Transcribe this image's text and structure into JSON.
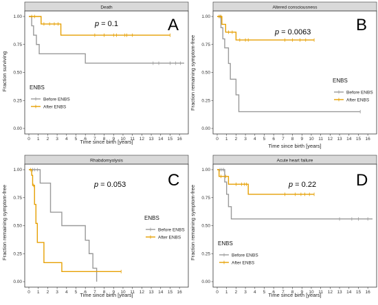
{
  "figure": {
    "colors": {
      "before": "#999999",
      "after": "#E69F00",
      "frame": "#333333",
      "strip_fill": "#d9d9d9"
    },
    "legend_title": "ENBS",
    "legend_labels": [
      "Before ENBS",
      "After ENBS"
    ]
  },
  "chart_data": [
    {
      "type": "line",
      "letter": "A",
      "title": "Death",
      "p_prefix": "p",
      "p_value": " = 0.1",
      "xlabel": "Time since birth [years]",
      "ylabel": "Fraction surviving",
      "xlim": [
        0,
        16.5
      ],
      "ylim": [
        0,
        1
      ],
      "x_ticks": [
        0,
        1,
        2,
        3,
        4,
        5,
        6,
        7,
        8,
        9,
        10,
        11,
        12,
        13,
        14,
        15,
        16
      ],
      "y_ticks": [
        0,
        0.25,
        0.5,
        0.75,
        1
      ],
      "y_tick_labels": [
        "0.00",
        "0.25",
        "0.50",
        "0.75",
        "1.00"
      ],
      "legend_position": "left",
      "series": [
        {
          "name": "Before ENBS",
          "color_key": "before",
          "steps": [
            [
              0,
              1
            ],
            [
              0.3,
              0.917
            ],
            [
              0.5,
              0.833
            ],
            [
              0.8,
              0.75
            ],
            [
              1.1,
              0.667
            ],
            [
              6.0,
              0.583
            ],
            [
              16.5,
              0.583
            ]
          ],
          "censor": [
            13.2,
            13.8,
            15.0,
            15.6,
            16.1
          ]
        },
        {
          "name": "After ENBS",
          "color_key": "after",
          "steps": [
            [
              0,
              1
            ],
            [
              1.3,
              0.933
            ],
            [
              3.4,
              0.833
            ],
            [
              15.0,
              0.833
            ]
          ],
          "censor": [
            0.3,
            0.6,
            1.6,
            2.2,
            2.7,
            3.1,
            7.0,
            8.0,
            9.0,
            9.3,
            10.2,
            10.4,
            11.0,
            15.0
          ]
        }
      ]
    },
    {
      "type": "line",
      "letter": "B",
      "title": "Altered consciousness",
      "p_prefix": "p",
      "p_value": " = 0.0063",
      "xlabel": "Time since birth [years]",
      "ylabel": "Fraction remaining symptom-free",
      "xlim": [
        0,
        16.5
      ],
      "ylim": [
        0,
        1
      ],
      "x_ticks": [
        0,
        1,
        2,
        3,
        4,
        5,
        6,
        7,
        8,
        9,
        10,
        11,
        12,
        13,
        14,
        15,
        16
      ],
      "y_ticks": [
        0,
        0.25,
        0.5,
        0.75,
        1
      ],
      "y_tick_labels": [
        "0.00",
        "0.25",
        "0.50",
        "0.75",
        "1.00"
      ],
      "legend_position": "right",
      "series": [
        {
          "name": "Before ENBS",
          "color_key": "before",
          "steps": [
            [
              0,
              1
            ],
            [
              0.4,
              0.9
            ],
            [
              0.6,
              0.8
            ],
            [
              0.8,
              0.72
            ],
            [
              1.2,
              0.58
            ],
            [
              1.4,
              0.44
            ],
            [
              2.0,
              0.3
            ],
            [
              2.3,
              0.15
            ],
            [
              15.2,
              0.15
            ]
          ],
          "censor": [
            0.3,
            15.2
          ]
        },
        {
          "name": "After ENBS",
          "color_key": "after",
          "steps": [
            [
              0,
              1
            ],
            [
              0.5,
              0.93
            ],
            [
              0.9,
              0.86
            ],
            [
              2.0,
              0.79
            ],
            [
              10.3,
              0.79
            ]
          ],
          "censor": [
            0.2,
            0.4,
            1.2,
            1.6,
            2.4,
            3.0,
            3.3,
            7.2,
            8.0,
            8.8,
            9.4,
            10.3
          ]
        }
      ]
    },
    {
      "type": "line",
      "letter": "C",
      "title": "Rhabdomyolysis",
      "p_prefix": "p",
      "p_value": " = 0.053",
      "xlabel": "Time since birth [years]",
      "ylabel": "Fraction remaining symptom-free",
      "xlim": [
        0,
        16.5
      ],
      "ylim": [
        0,
        1
      ],
      "x_ticks": [
        0,
        1,
        2,
        3,
        4,
        5,
        6,
        7,
        8,
        9,
        10,
        11,
        12,
        13,
        14,
        15,
        16
      ],
      "y_ticks": [
        0,
        0.25,
        0.5,
        0.75,
        1
      ],
      "y_tick_labels": [
        "0.00",
        "0.25",
        "0.50",
        "0.75",
        "1.00"
      ],
      "legend_position": "right",
      "series": [
        {
          "name": "Before ENBS",
          "color_key": "before",
          "steps": [
            [
              0,
              1
            ],
            [
              1.2,
              0.88
            ],
            [
              2.3,
              0.62
            ],
            [
              3.5,
              0.5
            ],
            [
              6.0,
              0.37
            ],
            [
              6.4,
              0.25
            ],
            [
              6.8,
              0.12
            ],
            [
              7.2,
              0.0
            ]
          ],
          "censor": [
            0.4,
            0.6,
            0.9
          ]
        },
        {
          "name": "After ENBS",
          "color_key": "after",
          "steps": [
            [
              0,
              1
            ],
            [
              0.3,
              0.95
            ],
            [
              0.4,
              0.86
            ],
            [
              0.6,
              0.69
            ],
            [
              0.75,
              0.52
            ],
            [
              0.9,
              0.35
            ],
            [
              1.6,
              0.17
            ],
            [
              3.5,
              0.09
            ],
            [
              9.8,
              0.09
            ]
          ],
          "censor": [
            0.2,
            0.5,
            9.8
          ]
        }
      ]
    },
    {
      "type": "line",
      "letter": "D",
      "title": "Acute heart failure",
      "p_prefix": "p",
      "p_value": " = 0.22",
      "xlabel": "Time since birth [years]",
      "ylabel": "Fraction remaining symptom-free",
      "xlim": [
        0,
        16.5
      ],
      "ylim": [
        0,
        1
      ],
      "x_ticks": [
        0,
        1,
        2,
        3,
        4,
        5,
        6,
        7,
        8,
        9,
        10,
        11,
        12,
        13,
        14,
        15,
        16
      ],
      "y_ticks": [
        0,
        0.25,
        0.5,
        0.75,
        1
      ],
      "y_tick_labels": [
        "0.00",
        "0.25",
        "0.50",
        "0.75",
        "1.00"
      ],
      "legend_position": "left",
      "series": [
        {
          "name": "Before ENBS",
          "color_key": "before",
          "steps": [
            [
              0,
              1
            ],
            [
              0.8,
              0.89
            ],
            [
              1.0,
              0.78
            ],
            [
              1.2,
              0.67
            ],
            [
              1.5,
              0.56
            ],
            [
              16.5,
              0.56
            ]
          ],
          "censor": [
            0.3,
            0.5,
            0.7,
            13.0,
            14.3,
            15.0,
            16.0
          ]
        },
        {
          "name": "After ENBS",
          "color_key": "after",
          "steps": [
            [
              0,
              1
            ],
            [
              0.2,
              0.94
            ],
            [
              1.2,
              0.87
            ],
            [
              3.3,
              0.78
            ],
            [
              10.3,
              0.78
            ]
          ],
          "censor": [
            0.4,
            0.9,
            2.0,
            2.6,
            2.9,
            3.1,
            7.2,
            8.3,
            8.9,
            9.3,
            9.8,
            10.3
          ]
        }
      ]
    }
  ]
}
